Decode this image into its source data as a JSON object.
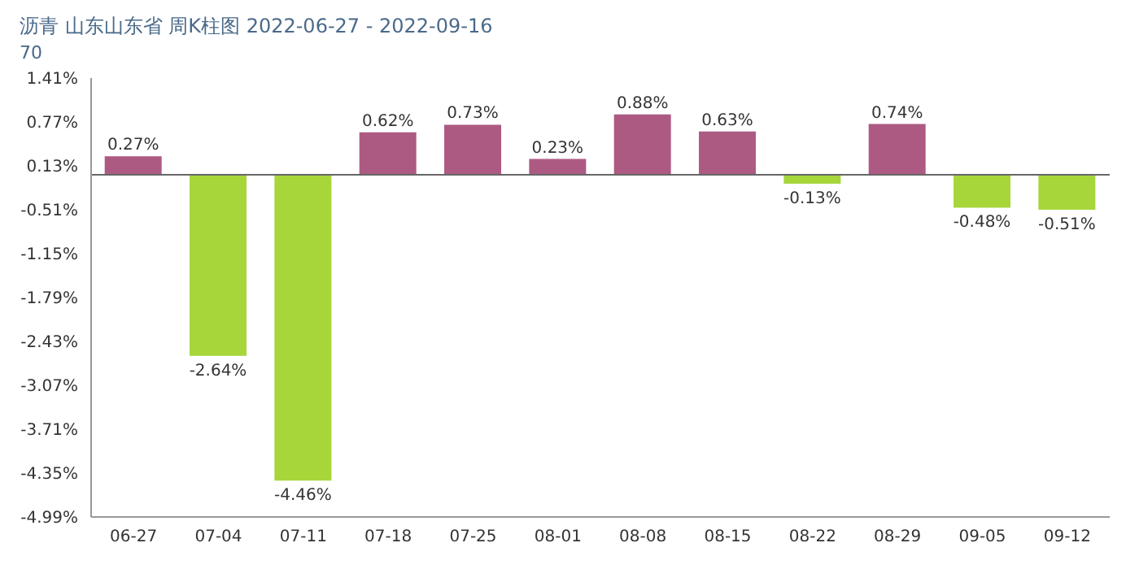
{
  "chart_data": {
    "type": "bar",
    "title": "沥青 山东山东省 周K柱图 2022-06-27 - 2022-09-16",
    "subtitle": "70",
    "categories": [
      "06-27",
      "07-04",
      "07-11",
      "07-18",
      "07-25",
      "08-01",
      "08-08",
      "08-15",
      "08-22",
      "08-29",
      "09-05",
      "09-12"
    ],
    "values": [
      0.27,
      -2.64,
      -4.46,
      0.62,
      0.73,
      0.23,
      0.88,
      0.63,
      -0.13,
      0.74,
      -0.48,
      -0.51
    ],
    "colors": [
      "#ad5a83",
      "#a6d63a",
      "#a6d63a",
      "#ad5a83",
      "#ad5a83",
      "#ad5a83",
      "#ad5a83",
      "#ad5a83",
      "#a6d63a",
      "#ad5a83",
      "#a6d63a",
      "#a6d63a"
    ],
    "value_labels": [
      "0.27%",
      "-2.64%",
      "-4.46%",
      "0.62%",
      "0.73%",
      "0.23%",
      "0.88%",
      "0.63%",
      "-0.13%",
      "0.74%",
      "-0.48%",
      "-0.51%"
    ],
    "ylim": [
      -4.99,
      1.41
    ],
    "yticks": [
      {
        "value": 1.41,
        "label": "1.41%"
      },
      {
        "value": 0.77,
        "label": "0.77%"
      },
      {
        "value": 0.13,
        "label": "0.13%"
      },
      {
        "value": -0.51,
        "label": "-0.51%"
      },
      {
        "value": -1.15,
        "label": "-1.15%"
      },
      {
        "value": -1.79,
        "label": "-1.79%"
      },
      {
        "value": -2.43,
        "label": "-2.43%"
      },
      {
        "value": -3.07,
        "label": "-3.07%"
      },
      {
        "value": -3.71,
        "label": "-3.71%"
      },
      {
        "value": -4.35,
        "label": "-4.35%"
      },
      {
        "value": -4.99,
        "label": "-4.99%"
      }
    ],
    "ref_lines": [
      {
        "axis": "y",
        "value": 0,
        "color": "#666666"
      }
    ],
    "grid": false,
    "legend": false
  }
}
